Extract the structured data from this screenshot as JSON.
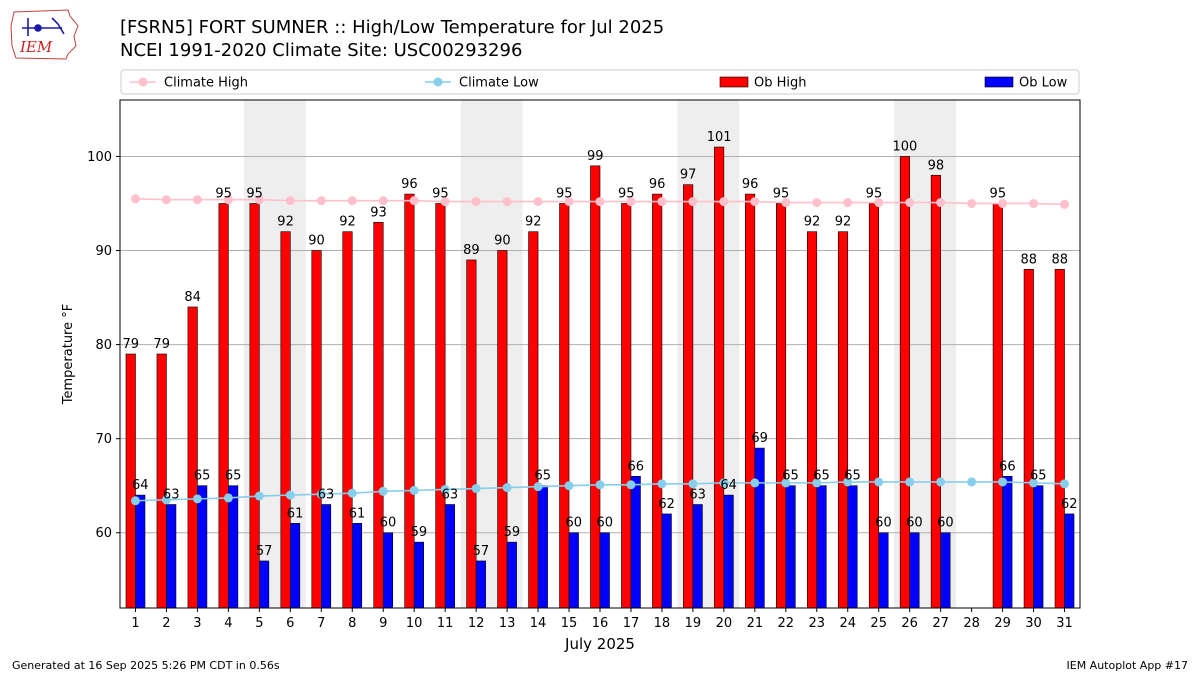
{
  "logo": {
    "text": "IEM"
  },
  "header": {
    "title": "[FSRN5] FORT SUMNER :: High/Low Temperature for Jul 2025",
    "subtitle": "NCEI 1991-2020 Climate Site: USC00293296"
  },
  "footer": {
    "generated": "Generated at 16 Sep 2025 5:26 PM CDT in 0.56s",
    "app": "IEM Autoplot App #17"
  },
  "colors": {
    "ob_high": "#ff0000",
    "ob_low": "#0000ff",
    "climate_high": "#ffc0cb",
    "climate_low": "#87ceeb",
    "weekend_band": "#eeeeee",
    "grid": "#b0b0b0"
  },
  "chart_data": {
    "type": "bar",
    "xlabel": "July 2025",
    "ylabel": "Temperature °F",
    "ylim": [
      52,
      106
    ],
    "yticks": [
      60,
      70,
      80,
      90,
      100
    ],
    "grid": "horizontal",
    "legend_position": "top",
    "categories": [
      "1",
      "2",
      "3",
      "4",
      "5",
      "6",
      "7",
      "8",
      "9",
      "10",
      "11",
      "12",
      "13",
      "14",
      "15",
      "16",
      "17",
      "18",
      "19",
      "20",
      "21",
      "22",
      "23",
      "24",
      "25",
      "26",
      "27",
      "28",
      "29",
      "30",
      "31"
    ],
    "shaded_days": [
      "5",
      "6",
      "12",
      "13",
      "19",
      "20",
      "26",
      "27"
    ],
    "series": [
      {
        "name": "Climate High",
        "kind": "line",
        "values": [
          95.5,
          95.4,
          95.4,
          95.4,
          95.4,
          95.3,
          95.3,
          95.3,
          95.3,
          95.3,
          95.2,
          95.2,
          95.2,
          95.2,
          95.2,
          95.2,
          95.2,
          95.2,
          95.2,
          95.2,
          95.2,
          95.1,
          95.1,
          95.1,
          95.1,
          95.1,
          95.1,
          95.0,
          95.0,
          95.0,
          94.9
        ]
      },
      {
        "name": "Climate Low",
        "kind": "line",
        "values": [
          63.4,
          63.5,
          63.6,
          63.7,
          63.9,
          64.0,
          64.1,
          64.2,
          64.4,
          64.5,
          64.6,
          64.7,
          64.8,
          64.9,
          65.0,
          65.1,
          65.1,
          65.2,
          65.2,
          65.3,
          65.3,
          65.3,
          65.3,
          65.4,
          65.4,
          65.4,
          65.4,
          65.4,
          65.4,
          65.3,
          65.2
        ]
      },
      {
        "name": "Ob High",
        "kind": "bar",
        "values": [
          79,
          79,
          84,
          95,
          95,
          92,
          90,
          92,
          93,
          96,
          95,
          89,
          90,
          92,
          95,
          99,
          95,
          96,
          97,
          101,
          96,
          95,
          92,
          92,
          95,
          100,
          98,
          null,
          95,
          88,
          88
        ]
      },
      {
        "name": "Ob Low",
        "kind": "bar",
        "values": [
          64,
          63,
          65,
          65,
          57,
          61,
          63,
          61,
          60,
          59,
          63,
          57,
          59,
          65,
          60,
          60,
          66,
          62,
          63,
          64,
          69,
          65,
          65,
          65,
          60,
          60,
          60,
          null,
          66,
          65,
          62
        ]
      }
    ]
  }
}
